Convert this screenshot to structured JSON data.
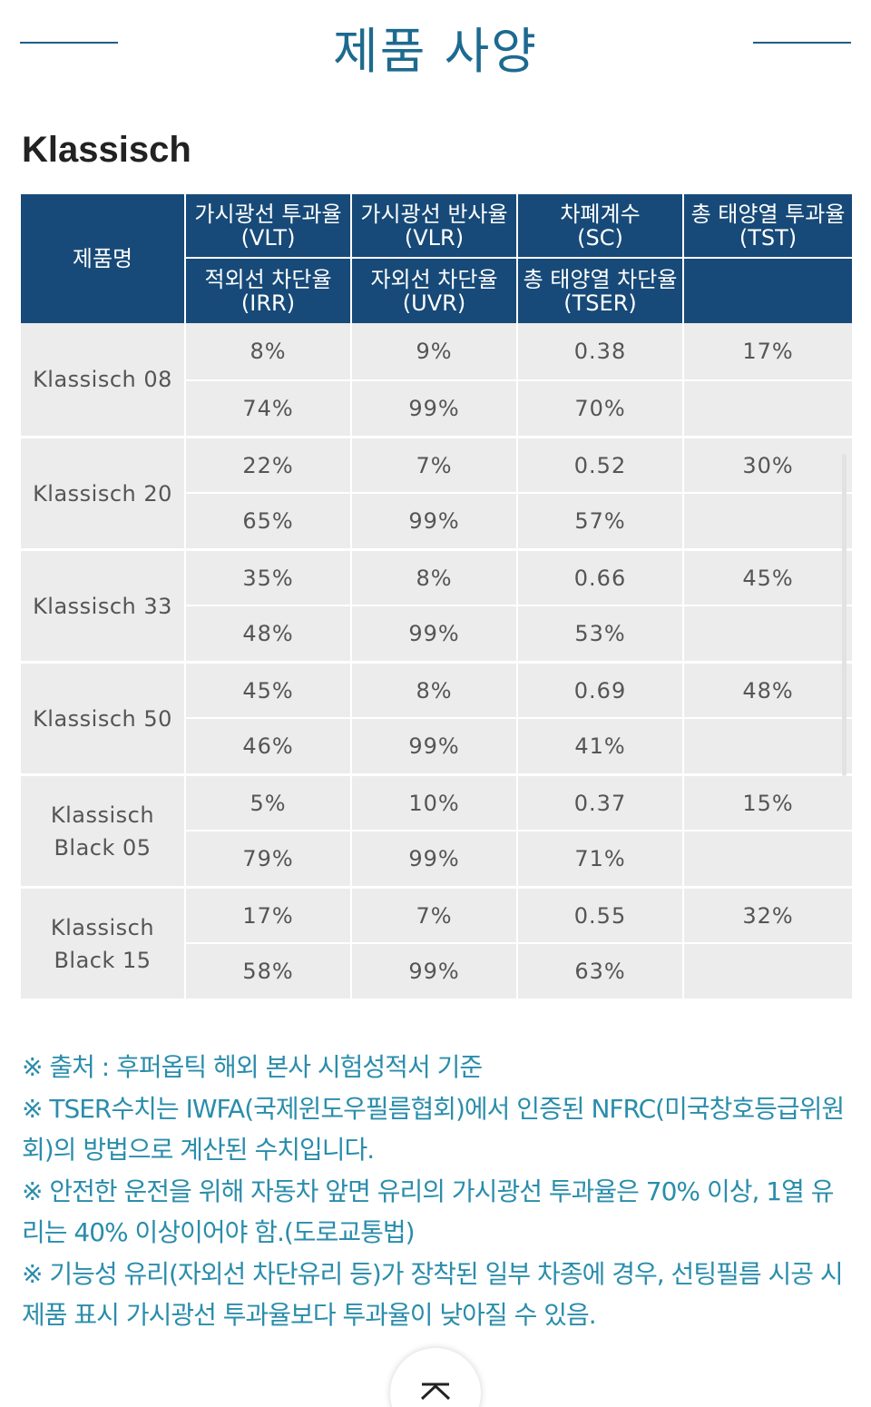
{
  "page": {
    "title": "제품 사양",
    "section_title": "Klassisch"
  },
  "table": {
    "headers": {
      "name": "제품명",
      "row1": [
        {
          "label": "가시광선 투과율",
          "abbr": "(VLT)"
        },
        {
          "label": "가시광선 반사율",
          "abbr": "(VLR)"
        },
        {
          "label": "차폐계수",
          "abbr": "(SC)"
        },
        {
          "label": "총 태양열 투과율",
          "abbr": "(TST)"
        }
      ],
      "row2": [
        {
          "label": "적외선 차단율",
          "abbr": "(IRR)"
        },
        {
          "label": "자외선 차단율",
          "abbr": "(UVR)"
        },
        {
          "label": "총 태양열 차단율",
          "abbr": "(TSER)"
        }
      ]
    },
    "products": [
      {
        "name_line1": "Klassisch 08",
        "name_line2": "",
        "vlt": "8%",
        "vlr": "9%",
        "sc": "0.38",
        "tst": "17%",
        "irr": "74%",
        "uvr": "99%",
        "tser": "70%"
      },
      {
        "name_line1": "Klassisch 20",
        "name_line2": "",
        "vlt": "22%",
        "vlr": "7%",
        "sc": "0.52",
        "tst": "30%",
        "irr": "65%",
        "uvr": "99%",
        "tser": "57%"
      },
      {
        "name_line1": "Klassisch 33",
        "name_line2": "",
        "vlt": "35%",
        "vlr": "8%",
        "sc": "0.66",
        "tst": "45%",
        "irr": "48%",
        "uvr": "99%",
        "tser": "53%"
      },
      {
        "name_line1": "Klassisch 50",
        "name_line2": "",
        "vlt": "45%",
        "vlr": "8%",
        "sc": "0.69",
        "tst": "48%",
        "irr": "46%",
        "uvr": "99%",
        "tser": "41%"
      },
      {
        "name_line1": "Klassisch",
        "name_line2": "Black 05",
        "vlt": "5%",
        "vlr": "10%",
        "sc": "0.37",
        "tst": "15%",
        "irr": "79%",
        "uvr": "99%",
        "tser": "71%"
      },
      {
        "name_line1": "Klassisch",
        "name_line2": "Black 15",
        "vlt": "17%",
        "vlr": "7%",
        "sc": "0.55",
        "tst": "32%",
        "irr": "58%",
        "uvr": "99%",
        "tser": "63%"
      }
    ]
  },
  "notes": [
    "※ 출처 : 후퍼옵틱 해외 본사 시험성적서 기준",
    "※ TSER수치는 IWFA(국제윈도우필름협회)에서 인증된 NFRC(미국창호등급위원회)의 방법으로 계산된 수치입니다.",
    "※ 안전한 운전을 위해 자동차 앞면 유리의 가시광선 투과율은 70% 이상, 1열 유리는 40% 이상이어야 함.(도로교통법)",
    "※ 기능성 유리(자외선 차단유리 등)가 장착된 일부 차종에 경우, 선팅필름 시공 시 제품 표시 가시광선 투과율보다 투과율이 낮아질 수 있음."
  ],
  "icons": {
    "scroll_top": "chevron-up-icon"
  },
  "colors": {
    "header_bg": "#174a78",
    "title": "#1d6a8f",
    "note_text": "#2a8dab",
    "cell_bg": "#ececec"
  }
}
